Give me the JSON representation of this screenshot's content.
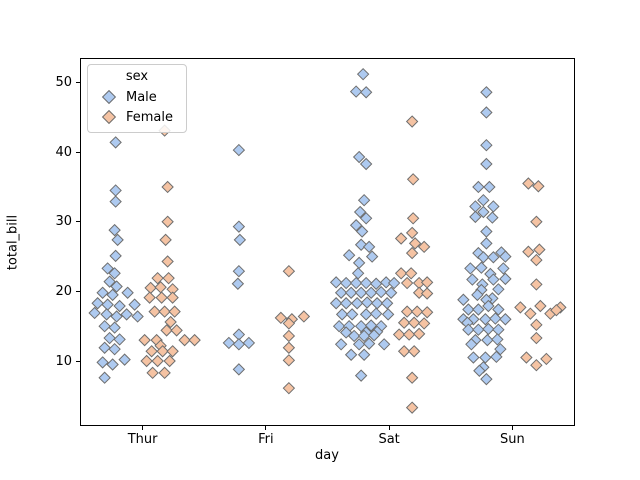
{
  "chart_data": {
    "type": "strip",
    "title": "",
    "xlabel": "day",
    "ylabel": "total_bill",
    "categories": [
      "Thur",
      "Fri",
      "Sat",
      "Sun"
    ],
    "y_ticks": [
      10,
      20,
      30,
      40,
      50
    ],
    "y_min": 0.81,
    "y_max": 53.38,
    "grid": false,
    "marker": "diamond",
    "legend": {
      "title": "sex",
      "position": "upper-left"
    },
    "series": [
      {
        "name": "Male",
        "color": "#aecaf0",
        "edge_color": "#6e6e6e",
        "groups": {
          "Thur": [
            [
              -27,
              41.4
            ],
            [
              -27,
              34.5
            ],
            [
              -27,
              32.9
            ],
            [
              -28,
              28.8
            ],
            [
              -25,
              27.4
            ],
            [
              -27,
              25.1
            ],
            [
              -35,
              23.3
            ],
            [
              -28,
              22.6
            ],
            [
              -33,
              21.4
            ],
            [
              -26,
              20.7
            ],
            [
              -40,
              19.8
            ],
            [
              -30,
              19.5
            ],
            [
              -15,
              19.8
            ],
            [
              -45,
              18.3
            ],
            [
              -35,
              18.1
            ],
            [
              -23,
              17.9
            ],
            [
              -8,
              18.1
            ],
            [
              -36,
              16.7
            ],
            [
              -48,
              16.9
            ],
            [
              -26,
              16.4
            ],
            [
              -16,
              16.7
            ],
            [
              -5,
              16.4
            ],
            [
              -38,
              15.0
            ],
            [
              -28,
              14.8
            ],
            [
              -33,
              13.3
            ],
            [
              -23,
              13.1
            ],
            [
              -38,
              11.9
            ],
            [
              -28,
              11.7
            ],
            [
              -18,
              10.2
            ],
            [
              -40,
              9.8
            ],
            [
              -30,
              9.5
            ],
            [
              -38,
              7.6
            ]
          ],
          "Fri": [
            [
              -27,
              40.3
            ],
            [
              -27,
              29.3
            ],
            [
              -26,
              27.4
            ],
            [
              -27,
              22.9
            ],
            [
              -28,
              21.1
            ],
            [
              -27,
              13.8
            ],
            [
              -37,
              12.6
            ],
            [
              -27,
              12.4
            ],
            [
              -17,
              12.6
            ],
            [
              -27,
              8.8
            ]
          ],
          "Sat": [
            [
              -26,
              51.2
            ],
            [
              -33,
              48.7
            ],
            [
              -23,
              48.6
            ],
            [
              -30,
              39.3
            ],
            [
              -23,
              38.3
            ],
            [
              -25,
              33.1
            ],
            [
              -29,
              31.4
            ],
            [
              -23,
              30.5
            ],
            [
              -33,
              29.5
            ],
            [
              -27,
              28.6
            ],
            [
              -28,
              26.7
            ],
            [
              -20,
              26.4
            ],
            [
              -40,
              25.2
            ],
            [
              -17,
              25.0
            ],
            [
              -30,
              24.1
            ],
            [
              -31,
              22.6
            ],
            [
              -53,
              21.3
            ],
            [
              -43,
              21.2
            ],
            [
              -33,
              21.2
            ],
            [
              -23,
              21.2
            ],
            [
              -13,
              21.1
            ],
            [
              -3,
              21.3
            ],
            [
              5,
              21.2
            ],
            [
              -48,
              19.8
            ],
            [
              -38,
              19.8
            ],
            [
              -28,
              19.8
            ],
            [
              -18,
              19.8
            ],
            [
              -8,
              19.9
            ],
            [
              2,
              19.8
            ],
            [
              -53,
              18.3
            ],
            [
              -43,
              18.3
            ],
            [
              -32,
              18.3
            ],
            [
              -22,
              18.4
            ],
            [
              -12,
              18.3
            ],
            [
              -2,
              18.3
            ],
            [
              -47,
              16.7
            ],
            [
              -37,
              16.7
            ],
            [
              -23,
              16.7
            ],
            [
              -13,
              16.8
            ],
            [
              -1,
              16.7
            ],
            [
              -50,
              15.0
            ],
            [
              -40,
              15.0
            ],
            [
              -28,
              15.0
            ],
            [
              -18,
              15.1
            ],
            [
              -8,
              15.0
            ],
            [
              -43,
              14.1
            ],
            [
              -23,
              14.1
            ],
            [
              -12,
              14.2
            ],
            [
              -35,
              13.6
            ],
            [
              -25,
              13.6
            ],
            [
              -15,
              13.7
            ],
            [
              -48,
              12.4
            ],
            [
              -30,
              12.4
            ],
            [
              -20,
              12.5
            ],
            [
              -5,
              12.4
            ],
            [
              -38,
              10.9
            ],
            [
              -25,
              10.9
            ],
            [
              -28,
              7.9
            ]
          ],
          "Sun": [
            [
              -26,
              48.6
            ],
            [
              -26,
              45.7
            ],
            [
              -26,
              41.0
            ],
            [
              -26,
              38.3
            ],
            [
              -34,
              35.0
            ],
            [
              -23,
              35.0
            ],
            [
              -29,
              33.1
            ],
            [
              -37,
              32.2
            ],
            [
              -19,
              32.2
            ],
            [
              -29,
              31.4
            ],
            [
              -37,
              30.7
            ],
            [
              -20,
              30.6
            ],
            [
              -26,
              28.6
            ],
            [
              -26,
              26.9
            ],
            [
              -34,
              25.5
            ],
            [
              -11,
              25.6
            ],
            [
              -29,
              24.9
            ],
            [
              -19,
              24.9
            ],
            [
              -7,
              25.0
            ],
            [
              -42,
              23.3
            ],
            [
              -31,
              23.4
            ],
            [
              -9,
              23.3
            ],
            [
              -22,
              22.5
            ],
            [
              -40,
              21.7
            ],
            [
              -19,
              21.7
            ],
            [
              -7,
              21.8
            ],
            [
              -30,
              21.0
            ],
            [
              -31,
              20.2
            ],
            [
              -14,
              20.3
            ],
            [
              -35,
              19.5
            ],
            [
              -20,
              19.0
            ],
            [
              -49,
              18.8
            ],
            [
              -26,
              18.8
            ],
            [
              -24,
              17.9
            ],
            [
              -44,
              17.4
            ],
            [
              -34,
              17.4
            ],
            [
              -14,
              17.4
            ],
            [
              -49,
              16.0
            ],
            [
              -39,
              16.0
            ],
            [
              -27,
              16.0
            ],
            [
              -17,
              16.1
            ],
            [
              -7,
              16.0
            ],
            [
              -45,
              15.5
            ],
            [
              -44,
              14.5
            ],
            [
              -34,
              14.5
            ],
            [
              -24,
              14.6
            ],
            [
              -14,
              14.5
            ],
            [
              -37,
              13.0
            ],
            [
              -25,
              13.0
            ],
            [
              -15,
              13.1
            ],
            [
              -41,
              12.4
            ],
            [
              -12,
              11.7
            ],
            [
              -39,
              10.5
            ],
            [
              -27,
              10.5
            ],
            [
              -16,
              10.6
            ],
            [
              -29,
              9.1
            ],
            [
              -33,
              8.6
            ],
            [
              -26,
              7.4
            ]
          ]
        }
      },
      {
        "name": "Female",
        "color": "#f5c3a3",
        "edge_color": "#6e6e6e",
        "groups": {
          "Thur": [
            [
              22,
              43.1
            ],
            [
              25,
              35.0
            ],
            [
              25,
              30.0
            ],
            [
              23,
              27.4
            ],
            [
              25,
              24.3
            ],
            [
              15,
              21.9
            ],
            [
              26,
              21.9
            ],
            [
              8,
              20.5
            ],
            [
              18,
              20.6
            ],
            [
              30,
              20.3
            ],
            [
              7,
              19.1
            ],
            [
              19,
              19.1
            ],
            [
              30,
              19.1
            ],
            [
              12,
              17.1
            ],
            [
              22,
              17.1
            ],
            [
              32,
              17.1
            ],
            [
              28,
              15.6
            ],
            [
              24,
              14.4
            ],
            [
              34,
              14.4
            ],
            [
              2,
              13.0
            ],
            [
              14,
              13.0
            ],
            [
              42,
              13.0
            ],
            [
              52,
              13.0
            ],
            [
              18,
              12.2
            ],
            [
              9,
              11.4
            ],
            [
              20,
              11.4
            ],
            [
              30,
              11.4
            ],
            [
              4,
              10.0
            ],
            [
              15,
              10.0
            ],
            [
              27,
              10.0
            ],
            [
              10,
              8.3
            ],
            [
              22,
              8.3
            ]
          ],
          "Fri": [
            [
              23,
              22.9
            ],
            [
              15,
              16.2
            ],
            [
              26,
              16.0
            ],
            [
              38,
              16.4
            ],
            [
              23,
              15.4
            ],
            [
              23,
              13.6
            ],
            [
              23,
              11.9
            ],
            [
              23,
              10.1
            ],
            [
              23,
              6.1
            ]
          ],
          "Sat": [
            [
              23,
              44.4
            ],
            [
              24,
              36.1
            ],
            [
              24,
              30.5
            ],
            [
              23,
              28.4
            ],
            [
              12,
              27.6
            ],
            [
              26,
              26.9
            ],
            [
              35,
              26.4
            ],
            [
              23,
              25.5
            ],
            [
              12,
              22.6
            ],
            [
              22,
              22.6
            ],
            [
              18,
              21.2
            ],
            [
              30,
              21.2
            ],
            [
              38,
              21.3
            ],
            [
              30,
              19.8
            ],
            [
              38,
              19.7
            ],
            [
              18,
              17.1
            ],
            [
              28,
              17.1
            ],
            [
              38,
              17.0
            ],
            [
              15,
              15.5
            ],
            [
              25,
              15.5
            ],
            [
              35,
              15.4
            ],
            [
              10,
              13.8
            ],
            [
              20,
              13.8
            ],
            [
              30,
              13.9
            ],
            [
              15,
              11.4
            ],
            [
              25,
              11.4
            ],
            [
              23,
              7.6
            ],
            [
              23,
              3.3
            ]
          ],
          "Sun": [
            [
              16,
              35.5
            ],
            [
              26,
              35.1
            ],
            [
              24,
              30.0
            ],
            [
              16,
              25.7
            ],
            [
              27,
              26.0
            ],
            [
              24,
              24.5
            ],
            [
              24,
              21.0
            ],
            [
              8,
              17.7
            ],
            [
              18,
              16.8
            ],
            [
              28,
              17.9
            ],
            [
              38,
              16.8
            ],
            [
              48,
              17.7
            ],
            [
              44,
              17.3
            ],
            [
              24,
              15.2
            ],
            [
              24,
              13.3
            ],
            [
              14,
              10.5
            ],
            [
              24,
              9.4
            ],
            [
              34,
              10.3
            ]
          ]
        }
      }
    ]
  }
}
